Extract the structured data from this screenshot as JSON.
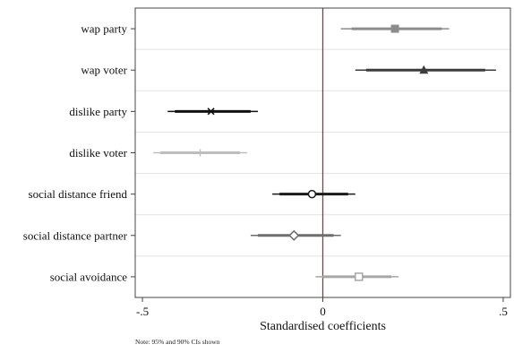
{
  "chart_data": {
    "type": "scatter",
    "subtype": "coefficient-plot",
    "title": "",
    "xlabel": "Standardised coefficients",
    "xlim": [
      -0.52,
      0.52
    ],
    "xticks": [
      {
        "value": -0.5,
        "label": "-.5"
      },
      {
        "value": 0,
        "label": "0"
      },
      {
        "value": 0.5,
        "label": ".5"
      }
    ],
    "reference_line": 0,
    "grid": "horizontal",
    "note": "Note: 95% and 90% CIs shown",
    "items": [
      {
        "label": "wap party",
        "estimate": 0.2,
        "ci95": [
          0.05,
          0.35
        ],
        "ci90": [
          0.08,
          0.33
        ],
        "marker": "square",
        "color": "#8c8c8c"
      },
      {
        "label": "wap voter",
        "estimate": 0.28,
        "ci95": [
          0.09,
          0.48
        ],
        "ci90": [
          0.12,
          0.45
        ],
        "marker": "triangle",
        "color": "#3c3c3c"
      },
      {
        "label": "dislike party",
        "estimate": -0.31,
        "ci95": [
          -0.43,
          -0.18
        ],
        "ci90": [
          -0.41,
          -0.2
        ],
        "marker": "x",
        "color": "#111111"
      },
      {
        "label": "dislike voter",
        "estimate": -0.34,
        "ci95": [
          -0.47,
          -0.21
        ],
        "ci90": [
          -0.45,
          -0.23
        ],
        "marker": "plus",
        "color": "#bdbdbd"
      },
      {
        "label": "social distance friend",
        "estimate": -0.03,
        "ci95": [
          -0.14,
          0.09
        ],
        "ci90": [
          -0.12,
          0.07
        ],
        "marker": "circle-open",
        "color": "#1a1a1a"
      },
      {
        "label": "social distance partner",
        "estimate": -0.08,
        "ci95": [
          -0.2,
          0.05
        ],
        "ci90": [
          -0.18,
          0.03
        ],
        "marker": "diamond-open",
        "color": "#6e6e6e"
      },
      {
        "label": "social avoidance",
        "estimate": 0.1,
        "ci95": [
          -0.02,
          0.21
        ],
        "ci90": [
          0.0,
          0.19
        ],
        "marker": "square-open",
        "color": "#a6a6a6"
      }
    ]
  }
}
